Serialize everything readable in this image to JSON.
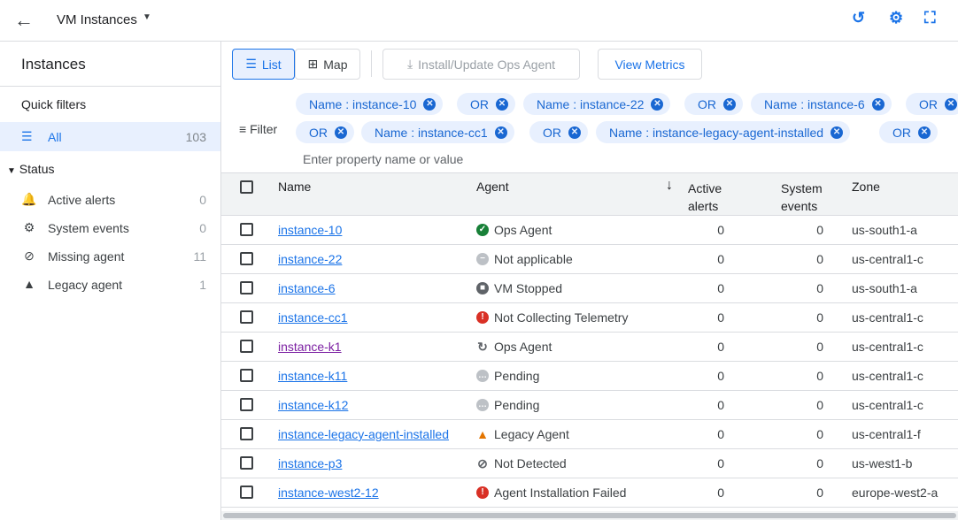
{
  "header": {
    "title": "VM Instances",
    "icons": [
      "back-arrow-icon",
      "caret-down-icon",
      "history-search-icon",
      "gear-icon",
      "fullscreen-icon"
    ]
  },
  "sidebar": {
    "title": "Instances",
    "quick_filters": "Quick filters",
    "all": {
      "label": "All",
      "count": "103"
    },
    "status": "Status",
    "items": [
      {
        "label": "Active alerts",
        "count": "0",
        "icon": "bell-icon"
      },
      {
        "label": "System events",
        "count": "0",
        "icon": "system-events-icon"
      },
      {
        "label": "Missing agent",
        "count": "11",
        "icon": "block-icon"
      },
      {
        "label": "Legacy agent",
        "count": "1",
        "icon": "warning-icon"
      }
    ]
  },
  "toolbar": {
    "list": "List",
    "map": "Map",
    "install": "Install/Update Ops Agent",
    "view_metrics": "View Metrics"
  },
  "filter": {
    "label": "Filter",
    "placeholder": "Enter property name or value",
    "chips_row1": [
      "Name : instance-10",
      "OR",
      "Name : instance-22",
      "OR",
      "Name : instance-6",
      "OR"
    ],
    "chips_row2": [
      "OR",
      "Name : instance-cc1",
      "OR",
      "Name : instance-legacy-agent-installed",
      "OR"
    ]
  },
  "table": {
    "columns": {
      "name": "Name",
      "agent": "Agent",
      "active_alerts_1": "Active",
      "active_alerts_2": "alerts",
      "system_events_1": "System",
      "system_events_2": "events",
      "zone": "Zone"
    },
    "rows": [
      {
        "name": "instance-10",
        "agent": "Ops Agent",
        "agent_status": "ok",
        "alerts": "0",
        "events": "0",
        "zone": "us-south1-a"
      },
      {
        "name": "instance-22",
        "agent": "Not applicable",
        "agent_status": "na",
        "alerts": "0",
        "events": "0",
        "zone": "us-central1-c"
      },
      {
        "name": "instance-6",
        "agent": "VM Stopped",
        "agent_status": "stopped",
        "alerts": "0",
        "events": "0",
        "zone": "us-south1-a"
      },
      {
        "name": "instance-cc1",
        "agent": "Not Collecting Telemetry",
        "agent_status": "error",
        "alerts": "0",
        "events": "0",
        "zone": "us-central1-c"
      },
      {
        "name": "instance-k1",
        "agent": "Ops Agent",
        "agent_status": "updating",
        "alerts": "0",
        "events": "0",
        "zone": "us-central1-c",
        "visited": true
      },
      {
        "name": "instance-k11",
        "agent": "Pending",
        "agent_status": "pending",
        "alerts": "0",
        "events": "0",
        "zone": "us-central1-c"
      },
      {
        "name": "instance-k12",
        "agent": "Pending",
        "agent_status": "pending",
        "alerts": "0",
        "events": "0",
        "zone": "us-central1-c"
      },
      {
        "name": "instance-legacy-agent-installed",
        "agent": "Legacy Agent",
        "agent_status": "legacy",
        "alerts": "0",
        "events": "0",
        "zone": "us-central1-f"
      },
      {
        "name": "instance-p3",
        "agent": "Not Detected",
        "agent_status": "not-detected",
        "alerts": "0",
        "events": "0",
        "zone": "us-west1-b"
      },
      {
        "name": "instance-west2-12",
        "agent": "Agent Installation Failed",
        "agent_status": "error",
        "alerts": "0",
        "events": "0",
        "zone": "europe-west2-a"
      }
    ]
  },
  "colors": {
    "accent": "#1a73e8",
    "ok": "#188038",
    "error": "#d93025",
    "warning": "#e37400",
    "muted": "#bdc1c6",
    "visited": "#7b1fa2"
  }
}
